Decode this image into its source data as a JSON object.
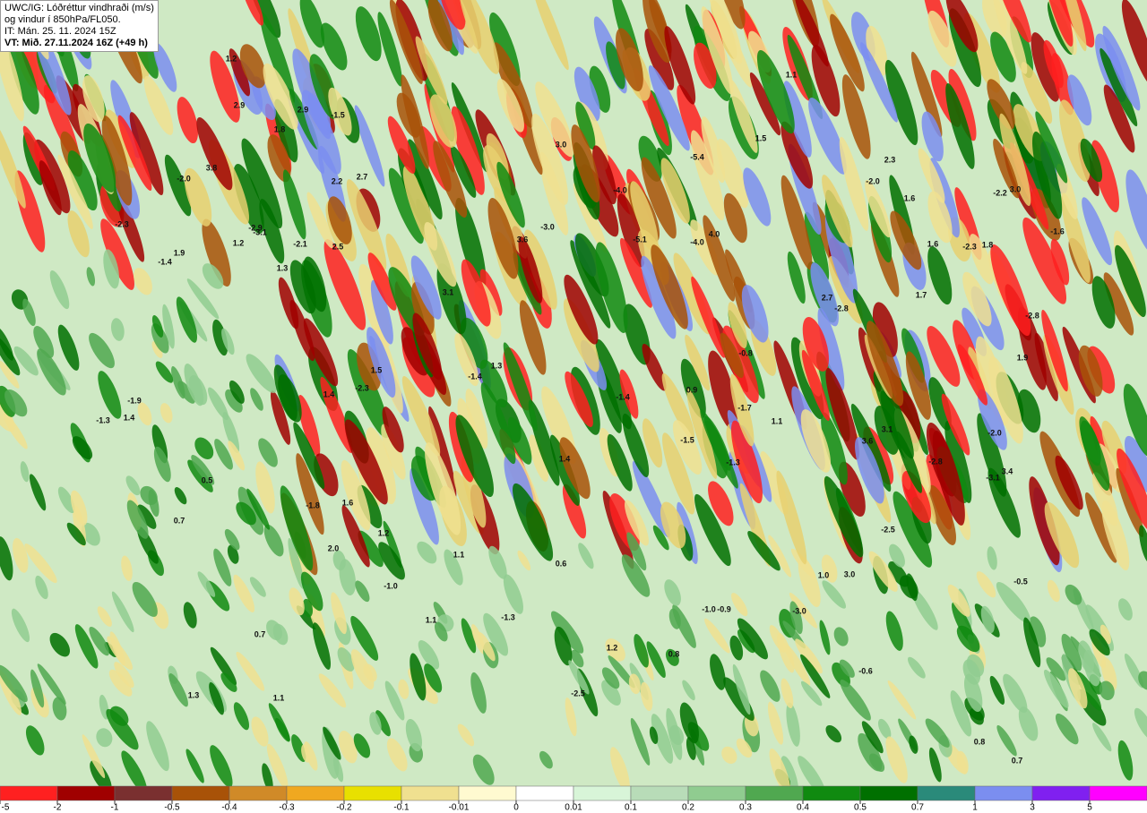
{
  "header": {
    "lines": [
      "UWC/IG: Lóðréttur vindhraði (m/s)",
      "og vindur í 850hPa/FL050.",
      "IT: Mán. 25. 11. 2024 15Z",
      "VT: Mið. 27.11.2024 16Z (+49 h)"
    ]
  },
  "map_labels": [
    "1.2",
    "2.9",
    "2.9",
    "-1.5",
    "1.8",
    "3.8",
    "-2.0",
    "2.2",
    "2.7",
    "-3.1",
    "-2.3",
    "-1.4",
    "1.9",
    "1.2",
    "-2.9",
    "-2.1",
    "2.5",
    "1.3",
    "3.1",
    "1.5",
    "-1.4",
    "-2.3",
    "-1.9",
    "1.3",
    "1.4",
    "-1.3",
    "1.4",
    "0.5",
    "0.7",
    "-1.8",
    "1.6",
    "2.0",
    "1.2",
    "-1.0",
    "1.1",
    "1.1",
    "-1.3",
    "3.0",
    "-4.0",
    "-5.4",
    "3.6",
    "-3.0",
    "-5.1",
    "-4.0",
    "4.0",
    "-1.4",
    "0.9",
    "-1.7",
    "-0.8",
    "1.1",
    "1.4",
    "-1.5",
    "-1.3",
    "0.8",
    "0.6",
    "-1.0",
    "-0.9",
    "-3.0",
    "1.0",
    "1.3",
    "1.1",
    "-2.5",
    "1.2",
    "0.7",
    "3.1",
    "1.1",
    "1.5",
    "2.3",
    "-2.0",
    "1.6",
    "1.6",
    "2.7",
    "-2.8",
    "1.7",
    "-2.3",
    "1.8",
    "3.0",
    "-1.6",
    "-2.8",
    "1.9",
    "3.6",
    "-2.8",
    "-3.1",
    "3.4",
    "-2.5",
    "3.0",
    "-0.5",
    "-0.6",
    "0.8",
    "0.7",
    "-2.0",
    "-2.2"
  ],
  "colorbar": {
    "colors": [
      "#ff2020",
      "#a00000",
      "#7a3030",
      "#a85208",
      "#d08a28",
      "#f0a820",
      "#e8e000",
      "#f0e090",
      "#fffad0",
      "#ffffff",
      "#d8f5d8",
      "#b8dcb8",
      "#90cc90",
      "#50a850",
      "#108a10",
      "#007000",
      "#2a8a7a",
      "#7b8ef0",
      "#8020f0",
      "#ff00ff"
    ],
    "ticks": [
      -5,
      -2,
      -1,
      -0.5,
      -0.4,
      -0.3,
      -0.2,
      -0.1,
      -0.01,
      0,
      0.01,
      0.1,
      0.2,
      0.3,
      0.4,
      0.5,
      0.7,
      1,
      3,
      5
    ]
  }
}
